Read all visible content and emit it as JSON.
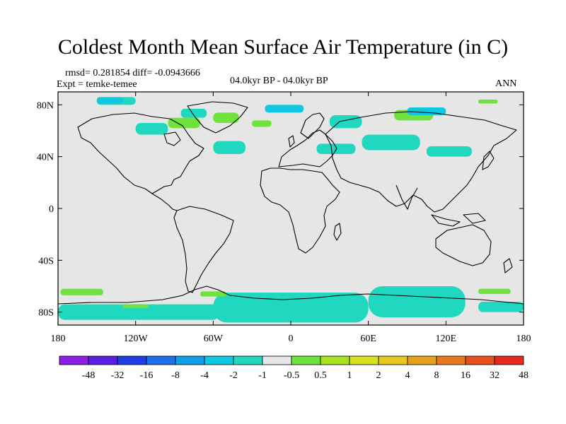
{
  "header": {
    "title": "Coldest Month Mean Surface Air Temperature (in C)",
    "rmsd_line": "rmsd= 0.281854 diff= -0.0943666",
    "expt_line": "Expt = temke-temee",
    "period": "04.0kyr BP - 04.0kyr BP",
    "season": "ANN"
  },
  "map": {
    "lon_range": [
      -180,
      180
    ],
    "lat_range": [
      -90,
      90
    ],
    "lat_ticks": [
      {
        "value": 80,
        "label": "80N"
      },
      {
        "value": 40,
        "label": "40N"
      },
      {
        "value": 0,
        "label": "0"
      },
      {
        "value": -40,
        "label": "40S"
      },
      {
        "value": -80,
        "label": "80S"
      }
    ],
    "lon_ticks": [
      {
        "value": -180,
        "label": "180"
      },
      {
        "value": -120,
        "label": "120W"
      },
      {
        "value": -60,
        "label": "60W"
      },
      {
        "value": 0,
        "label": "0"
      },
      {
        "value": 60,
        "label": "60E"
      },
      {
        "value": 120,
        "label": "120E"
      },
      {
        "value": 180,
        "label": "180"
      }
    ],
    "background_color": "#e6e6e6",
    "anomaly_regions": [
      {
        "level": "-1 to -0.5",
        "color": "#20d8c0",
        "lon": [
          -150,
          -120
        ],
        "lat": [
          80,
          86
        ]
      },
      {
        "level": "-1 to -0.5",
        "color": "#20d8c0",
        "lon": [
          -85,
          -65
        ],
        "lat": [
          70,
          77
        ]
      },
      {
        "level": "-1 to -0.5",
        "color": "#20d8c0",
        "lon": [
          -120,
          -95
        ],
        "lat": [
          57,
          66
        ]
      },
      {
        "level": "-1 to -0.5",
        "color": "#20d8c0",
        "lon": [
          -60,
          -35
        ],
        "lat": [
          42,
          52
        ]
      },
      {
        "level": "-1 to -0.5",
        "color": "#20d8c0",
        "lon": [
          55,
          100
        ],
        "lat": [
          45,
          57
        ]
      },
      {
        "level": "-1 to -0.5",
        "color": "#20d8c0",
        "lon": [
          20,
          50
        ],
        "lat": [
          42,
          50
        ]
      },
      {
        "level": "-1 to -0.5",
        "color": "#20d8c0",
        "lon": [
          105,
          140
        ],
        "lat": [
          40,
          48
        ]
      },
      {
        "level": "-1 to -0.5",
        "color": "#20d8c0",
        "lon": [
          30,
          55
        ],
        "lat": [
          62,
          72
        ]
      },
      {
        "level": "-1 to -0.5",
        "color": "#20d8c0",
        "lon": [
          -60,
          60
        ],
        "lat": [
          -88,
          -65
        ]
      },
      {
        "level": "-1 to -0.5",
        "color": "#20d8c0",
        "lon": [
          60,
          135
        ],
        "lat": [
          -84,
          -60
        ]
      },
      {
        "level": "-1 to -0.5",
        "color": "#20d8c0",
        "lon": [
          -180,
          -55
        ],
        "lat": [
          -86,
          -74
        ]
      },
      {
        "level": "-1 to -0.5",
        "color": "#20d8c0",
        "lon": [
          145,
          180
        ],
        "lat": [
          -80,
          -72
        ]
      },
      {
        "level": "0.5 to 1",
        "color": "#6fe23c",
        "lon": [
          -95,
          -70
        ],
        "lat": [
          62,
          70
        ]
      },
      {
        "level": "0.5 to 1",
        "color": "#6fe23c",
        "lon": [
          -60,
          -40
        ],
        "lat": [
          66,
          74
        ]
      },
      {
        "level": "0.5 to 1",
        "color": "#6fe23c",
        "lon": [
          -30,
          -15
        ],
        "lat": [
          63,
          68
        ]
      },
      {
        "level": "0.5 to 1",
        "color": "#6fe23c",
        "lon": [
          80,
          110
        ],
        "lat": [
          68,
          76
        ]
      },
      {
        "level": "0.5 to 1",
        "color": "#6fe23c",
        "lon": [
          145,
          160
        ],
        "lat": [
          81,
          84
        ]
      },
      {
        "level": "0.5 to 1",
        "color": "#6fe23c",
        "lon": [
          -178,
          -145
        ],
        "lat": [
          -67,
          -62
        ]
      },
      {
        "level": "0.5 to 1",
        "color": "#6fe23c",
        "lon": [
          -70,
          -50
        ],
        "lat": [
          -68,
          -64
        ]
      },
      {
        "level": "0.5 to 1",
        "color": "#6fe23c",
        "lon": [
          -130,
          -110
        ],
        "lat": [
          -77,
          -74
        ]
      },
      {
        "level": "0.5 to 1",
        "color": "#6fe23c",
        "lon": [
          145,
          170
        ],
        "lat": [
          -66,
          -62
        ]
      },
      {
        "level": "-2 to -1",
        "color": "#0ec8e0",
        "lon": [
          -150,
          -130
        ],
        "lat": [
          81,
          86
        ]
      },
      {
        "level": "-2 to -1",
        "color": "#0ec8e0",
        "lon": [
          -20,
          10
        ],
        "lat": [
          74,
          80
        ]
      },
      {
        "level": "-2 to -1",
        "color": "#0ec8e0",
        "lon": [
          90,
          120
        ],
        "lat": [
          72,
          78
        ]
      }
    ]
  },
  "colorbar": {
    "colors": [
      "#8c1fe6",
      "#5a1ee0",
      "#1f3ce6",
      "#1f6fe6",
      "#0f9fe8",
      "#0ec8e0",
      "#20d8c0",
      "#e6e6e6",
      "#6fe23c",
      "#a8e21e",
      "#d6e21e",
      "#e6c81e",
      "#e6a01e",
      "#e6781e",
      "#e6501e",
      "#e6281e"
    ],
    "labels": [
      "-48",
      "-32",
      "-16",
      "-8",
      "-4",
      "-2",
      "-1",
      "-0.5",
      "0.5",
      "1",
      "2",
      "4",
      "8",
      "16",
      "32",
      "48"
    ]
  }
}
